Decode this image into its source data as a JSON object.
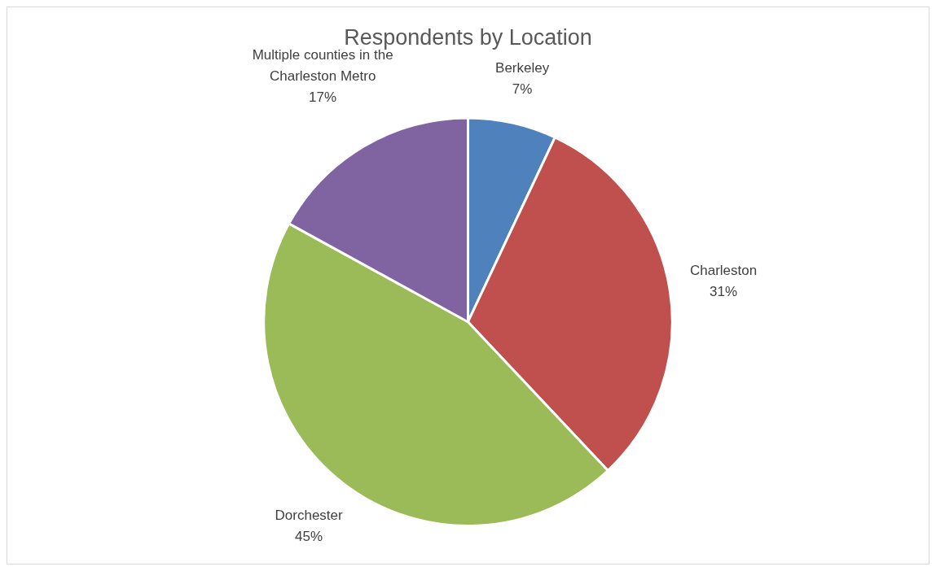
{
  "chart_data": {
    "type": "pie",
    "title": "Respondents by Location",
    "categories": [
      "Berkeley",
      "Charleston",
      "Dorchester",
      "Multiple counties in the Charleston Metro"
    ],
    "values": [
      7,
      31,
      45,
      17
    ],
    "colors": [
      "#4f81bd",
      "#c0504d",
      "#9bbb59",
      "#8064a2"
    ],
    "value_labels": [
      "7%",
      "31%",
      "45%",
      "17%"
    ],
    "legend": false
  }
}
